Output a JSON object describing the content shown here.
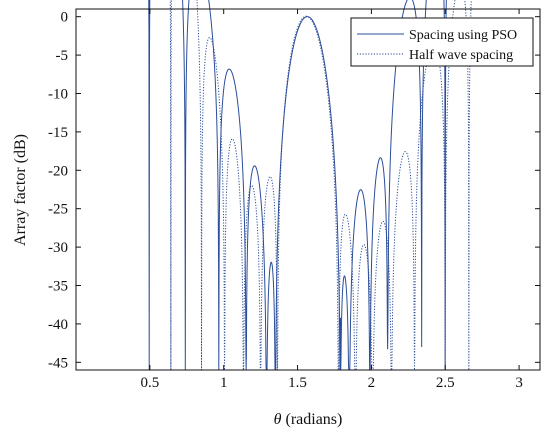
{
  "chart_data": {
    "type": "line",
    "xlabel_symbol": "θ",
    "xlabel_unit": "(radians)",
    "ylabel": "Array factor (dB)",
    "xlim": [
      0,
      3.1416
    ],
    "ylim": [
      -46,
      1
    ],
    "x_ticks": [
      0.5,
      1,
      1.5,
      2,
      2.5,
      3
    ],
    "x_tick_labels": [
      "0.5",
      "1",
      "1.5",
      "2",
      "2.5",
      "3"
    ],
    "y_ticks": [
      0,
      -5,
      -10,
      -15,
      -20,
      -25,
      -30,
      -35,
      -40,
      -45
    ],
    "y_tick_labels": [
      "0",
      "-5",
      "-10",
      "-15",
      "-20",
      "-25",
      "-30",
      "-35",
      "-40",
      "-45"
    ],
    "grid": false,
    "legend_position": "top-right",
    "series": [
      {
        "name": "Spacing using PSO",
        "color": "#2b4e9a",
        "style": "solid",
        "peak_x": 1.5708,
        "nulls": [
          0.496,
          0.74,
          0.967,
          1.152,
          1.29,
          1.35,
          1.79,
          1.85,
          1.99,
          2.11,
          2.34,
          2.5
        ],
        "null_depths": [
          -46,
          -46,
          -46,
          -46,
          -46,
          -46,
          -39.2,
          -46,
          -44.5,
          -43.3,
          -43.0,
          -46
        ]
      },
      {
        "name": "Half wave spacing",
        "color": "#2b4e9a",
        "style": "dotted",
        "peak_x": 1.5708,
        "nulls": [
          0.642,
          0.85,
          1.006,
          1.134,
          1.25,
          1.364,
          1.777,
          1.892,
          2.008,
          2.136,
          2.292,
          2.5,
          2.66
        ],
        "null_depths": [
          -46,
          -46,
          -46,
          -46,
          -46,
          -46,
          -46,
          -46,
          -46,
          -46,
          -46,
          -46,
          -46
        ]
      }
    ]
  }
}
